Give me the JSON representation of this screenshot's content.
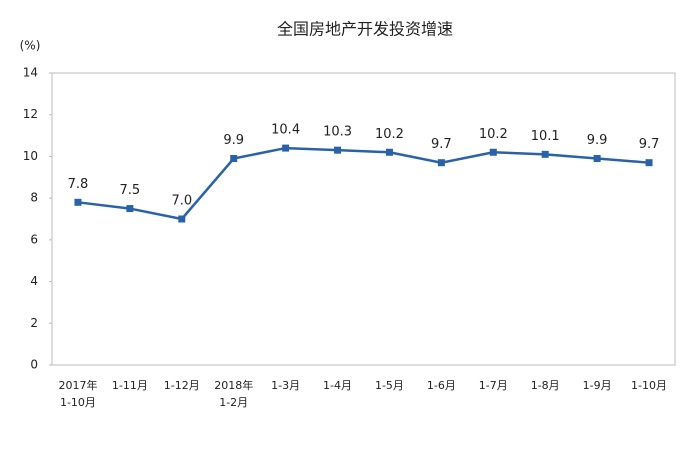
{
  "chart_data": {
    "type": "line",
    "title": "全国房地产开发投资增速",
    "y_unit": "(%)",
    "categories": [
      "2017年\n1-10月",
      "1-11月",
      "1-12月",
      "2018年\n1-2月",
      "1-3月",
      "1-4月",
      "1-5月",
      "1-6月",
      "1-7月",
      "1-8月",
      "1-9月",
      "1-10月"
    ],
    "series": [
      {
        "name": "全国房地产开发投资增速",
        "color": "#2a62a8",
        "values": [
          7.8,
          7.5,
          7.0,
          9.9,
          10.4,
          10.3,
          10.2,
          9.7,
          10.2,
          10.1,
          9.9,
          9.7
        ],
        "value_labels": [
          "7.8",
          "7.5",
          "7.0",
          "9.9",
          "10.4",
          "10.3",
          "10.2",
          "9.7",
          "10.2",
          "10.1",
          "9.9",
          "9.7"
        ]
      }
    ],
    "ylim": [
      0,
      14
    ],
    "yticks": [
      0,
      2,
      4,
      6,
      8,
      10,
      12,
      14
    ],
    "grid": false
  }
}
